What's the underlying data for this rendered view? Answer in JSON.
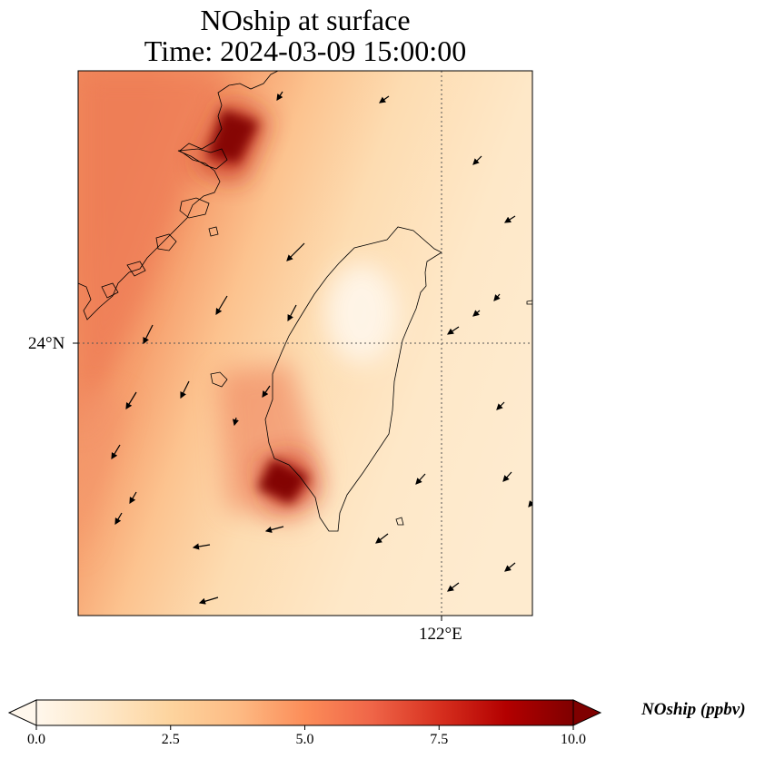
{
  "title": {
    "line1": "NOship at surface",
    "line2": "Time: 2024-03-09 15:00:00"
  },
  "map": {
    "region": "Taiwan Strait / Taiwan",
    "variable": "NOship",
    "level": "surface",
    "lon_tick_label": "122°E",
    "lat_tick_label": "24°N",
    "gridlines": "dotted",
    "colormap": "OrRd",
    "wind_vectors": "shown"
  },
  "colorbar": {
    "label": "NOship (ppbv)",
    "tick_labels": [
      "0.0",
      "2.5",
      "5.0",
      "7.5",
      "10.0"
    ],
    "ticks": [
      0,
      2.5,
      5,
      7.5,
      10
    ],
    "min": 0,
    "max": 10,
    "extend": "both",
    "colors": [
      "#fff7ec",
      "#fee8c8",
      "#fdd49e",
      "#fdbb84",
      "#fc8d59",
      "#ef6548",
      "#d7301f",
      "#b30000",
      "#7f0000"
    ]
  }
}
